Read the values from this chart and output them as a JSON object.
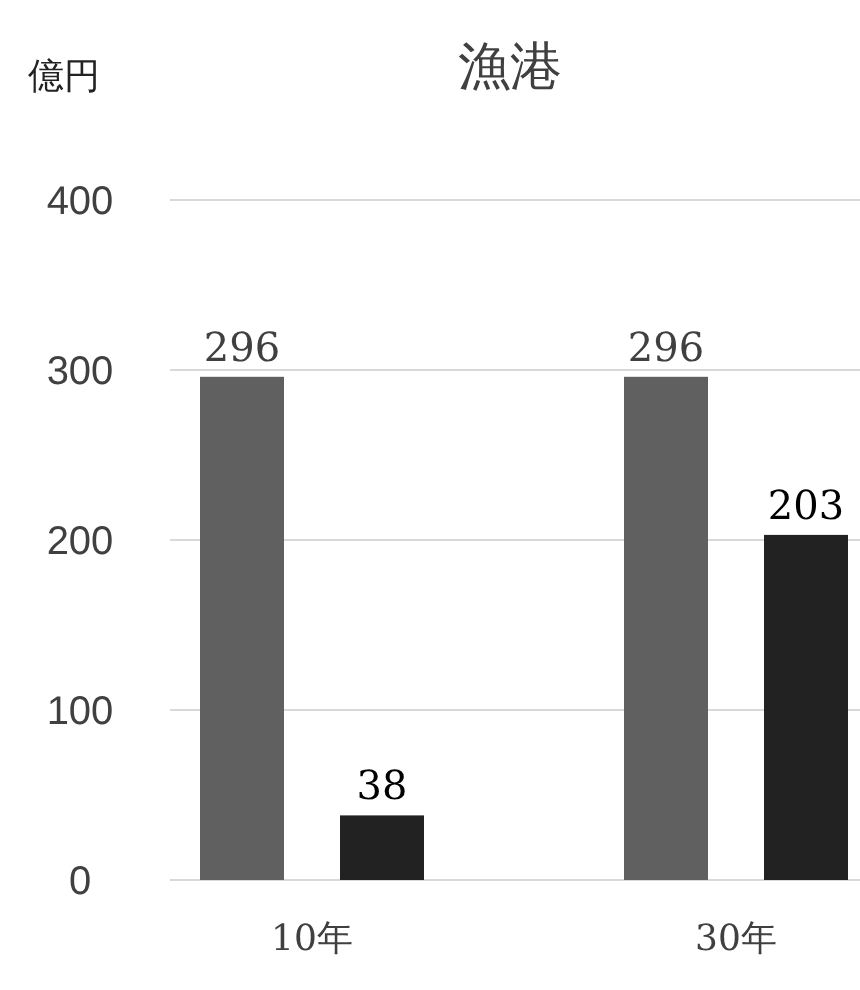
{
  "chart_data": {
    "type": "bar",
    "title": "漁港",
    "ylabel": "億円",
    "categories": [
      "10年",
      "30年"
    ],
    "series": [
      {
        "color": "#606060",
        "values": [
          296,
          296
        ]
      },
      {
        "color": "#222222",
        "values": [
          38,
          203
        ]
      }
    ],
    "ylim": [
      0,
      400
    ],
    "yticks": [
      0,
      100,
      200,
      300,
      400
    ],
    "grid": "y",
    "data_labels": true
  }
}
